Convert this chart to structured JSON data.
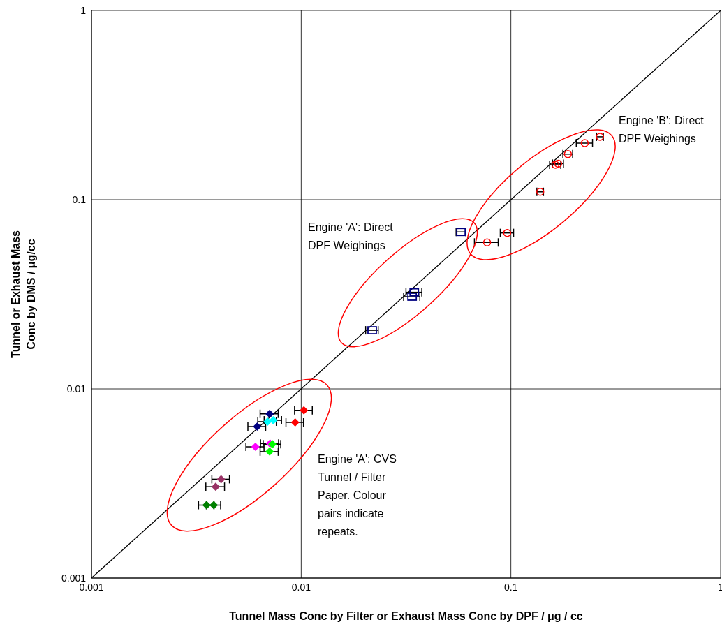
{
  "chart_data": {
    "type": "scatter",
    "xlabel": "Tunnel Mass Conc by Filter or Exhaust Mass Conc by DPF / μg / cc",
    "ylabel": "Tunnel or Exhaust Mass Conc by DMS / μg/cc",
    "log": "xy",
    "grid": true,
    "legend": false,
    "xlim": [
      0.001,
      1
    ],
    "ylim": [
      0.001,
      1
    ],
    "xticks": [
      0.001,
      0.01,
      0.1,
      1
    ],
    "yticks": [
      0.001,
      0.01,
      0.1,
      1
    ],
    "annotations": [
      "Engine 'B': Direct DPF Weighings",
      "Engine 'A': Direct DPF Weighings",
      "Engine 'A': CVS Tunnel / Filter Paper. Colour pairs indicate repeats."
    ],
    "series": [
      {
        "type": "line",
        "color": "#000000",
        "marker": "none",
        "line_style": "solid",
        "x": [
          0.001,
          1
        ],
        "values": [
          0.001,
          1
        ]
      },
      {
        "color": "#ff0000",
        "marker": "circle",
        "x": [
          0.266,
          0.225,
          0.187,
          0.163,
          0.168,
          0.138,
          0.096,
          0.077
        ],
        "values": [
          0.215,
          0.199,
          0.174,
          0.153,
          0.155,
          0.11,
          0.0667,
          0.0594
        ],
        "xerrors": [
          0.01,
          0.02,
          0.01,
          0.01,
          0.01,
          0.005,
          0.007,
          0.01
        ]
      },
      {
        "color": "#000080",
        "marker": "square",
        "x": [
          0.0578,
          0.0346,
          0.0338,
          0.0218
        ],
        "values": [
          0.0675,
          0.0324,
          0.0307,
          0.0204
        ],
        "xerrors": [
          0.003,
          0.003,
          0.003,
          0.0015
        ]
      },
      {
        "color": "#000080",
        "marker": "diamond",
        "x": [
          0.00707,
          0.00617
        ],
        "values": [
          0.00738,
          0.00632
        ],
        "xerrors": [
          0.0007,
          0.0006
        ]
      },
      {
        "color": "#00ffff",
        "marker": "diamond",
        "x": [
          0.00691,
          0.00736
        ],
        "values": [
          0.00671,
          0.00682
        ],
        "xerrors": [
          0.0007,
          0.0007
        ]
      },
      {
        "color": "#ff0000",
        "marker": "diamond",
        "x": [
          0.0103,
          0.00936
        ],
        "values": [
          0.0077,
          0.00665
        ],
        "xerrors": [
          0.001,
          0.0009
        ]
      },
      {
        "color": "#ff00ff",
        "marker": "diamond",
        "x": [
          0.00605,
          0.0071
        ],
        "values": [
          0.00494,
          0.00514
        ],
        "xerrors": [
          0.0006,
          0.0007
        ]
      },
      {
        "color": "#00ff00",
        "marker": "diamond",
        "x": [
          0.00707,
          0.00729
        ],
        "values": [
          0.00466,
          0.0051
        ],
        "xerrors": [
          0.0007,
          0.0007
        ]
      },
      {
        "color": "#993366",
        "marker": "diamond",
        "x": [
          0.00415,
          0.00391
        ],
        "values": [
          0.00333,
          0.00304
        ],
        "xerrors": [
          0.0004,
          0.0004
        ]
      },
      {
        "color": "#008000",
        "marker": "diamond",
        "x": [
          0.00354,
          0.00383
        ],
        "values": [
          0.00243,
          0.00243
        ],
        "xerrors": [
          0.0003,
          0.0003
        ]
      }
    ]
  }
}
